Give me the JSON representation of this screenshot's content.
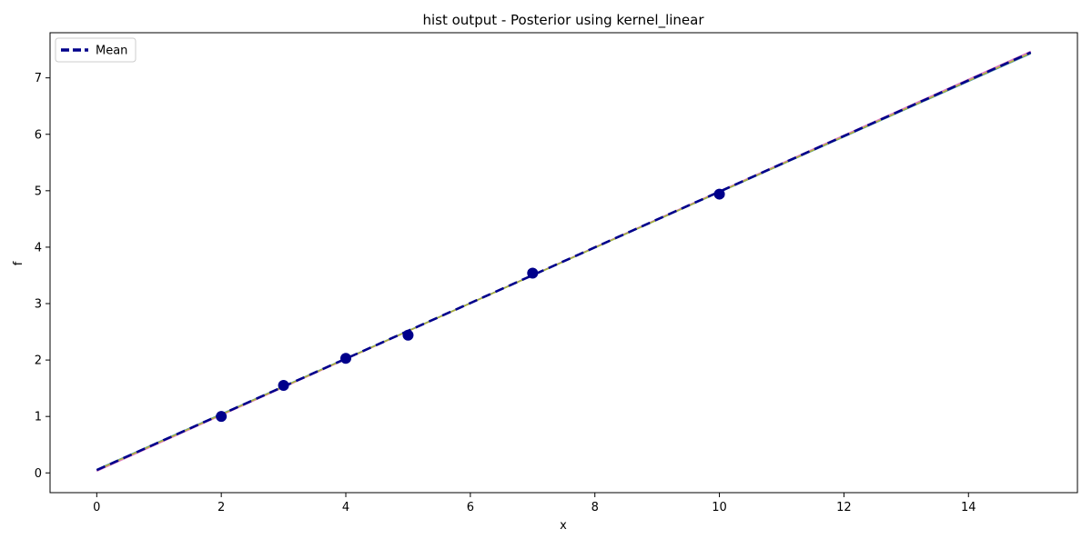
{
  "chart_data": {
    "type": "line",
    "title": "hist output - Posterior using kernel_linear",
    "xlabel": "x",
    "ylabel": "f",
    "xlim": [
      -0.75,
      15.75
    ],
    "ylim": [
      -0.35,
      7.8
    ],
    "xticks": [
      0,
      2,
      4,
      6,
      8,
      10,
      12,
      14
    ],
    "yticks": [
      0,
      1,
      2,
      3,
      4,
      5,
      6,
      7
    ],
    "grid": false,
    "legend_position": "top-left",
    "legend": [
      "Mean"
    ],
    "series": [
      {
        "name": "Mean",
        "style": "dashed",
        "color": "#00008B",
        "x": [
          0,
          15
        ],
        "y": [
          0.05,
          7.45
        ]
      }
    ],
    "samples": [
      {
        "color": "#9467bd",
        "x": [
          0,
          15
        ],
        "y": [
          0.04,
          7.46
        ]
      },
      {
        "color": "#e377c2",
        "x": [
          0,
          15
        ],
        "y": [
          0.03,
          7.47
        ]
      },
      {
        "color": "#1f77b4",
        "x": [
          0,
          15
        ],
        "y": [
          0.06,
          7.43
        ]
      },
      {
        "color": "#bcbd22",
        "x": [
          0,
          15
        ],
        "y": [
          0.05,
          7.44
        ]
      }
    ],
    "observations": {
      "color": "#00008B",
      "x": [
        2,
        3,
        4,
        5,
        7,
        10
      ],
      "y": [
        1.0,
        1.55,
        2.03,
        2.44,
        3.54,
        4.94
      ]
    }
  }
}
